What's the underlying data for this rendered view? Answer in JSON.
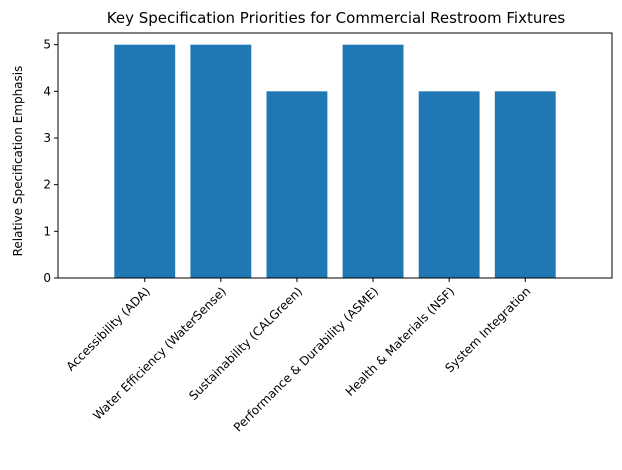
{
  "chart_data": {
    "type": "bar",
    "title": "Key Specification Priorities for Commercial Restroom Fixtures",
    "xlabel": "",
    "ylabel": "Relative Specification Emphasis",
    "categories": [
      "Accessibility (ADA)",
      "Water Efficiency (WaterSense)",
      "Sustainability (CALGreen)",
      "Performance & Durability (ASME)",
      "Health & Materials (NSF)",
      "System Integration"
    ],
    "values": [
      5,
      5,
      4,
      5,
      4,
      4
    ],
    "ylim": [
      0,
      5.25
    ],
    "yticks": [
      0,
      1,
      2,
      3,
      4,
      5
    ],
    "grid": false,
    "legend": "none",
    "bar_color": "#1f77b4"
  }
}
